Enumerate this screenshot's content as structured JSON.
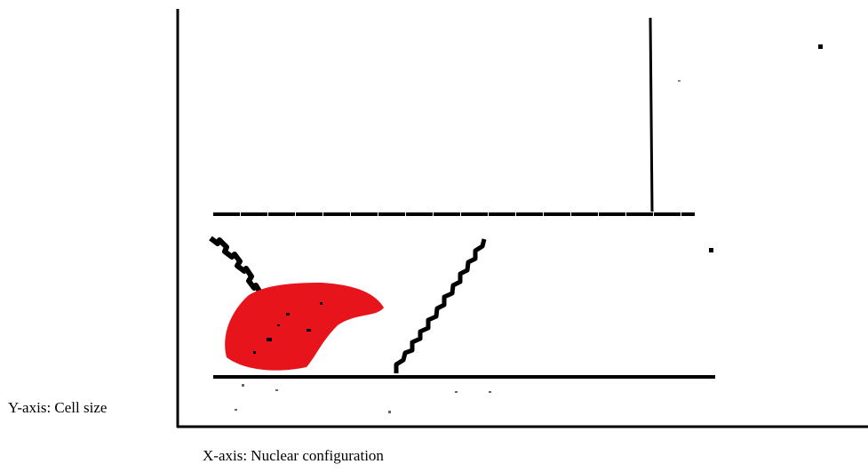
{
  "labels": {
    "y_axis": "Y-axis: Cell size",
    "x_axis": "X-axis: Nuclear configuration"
  }
}
